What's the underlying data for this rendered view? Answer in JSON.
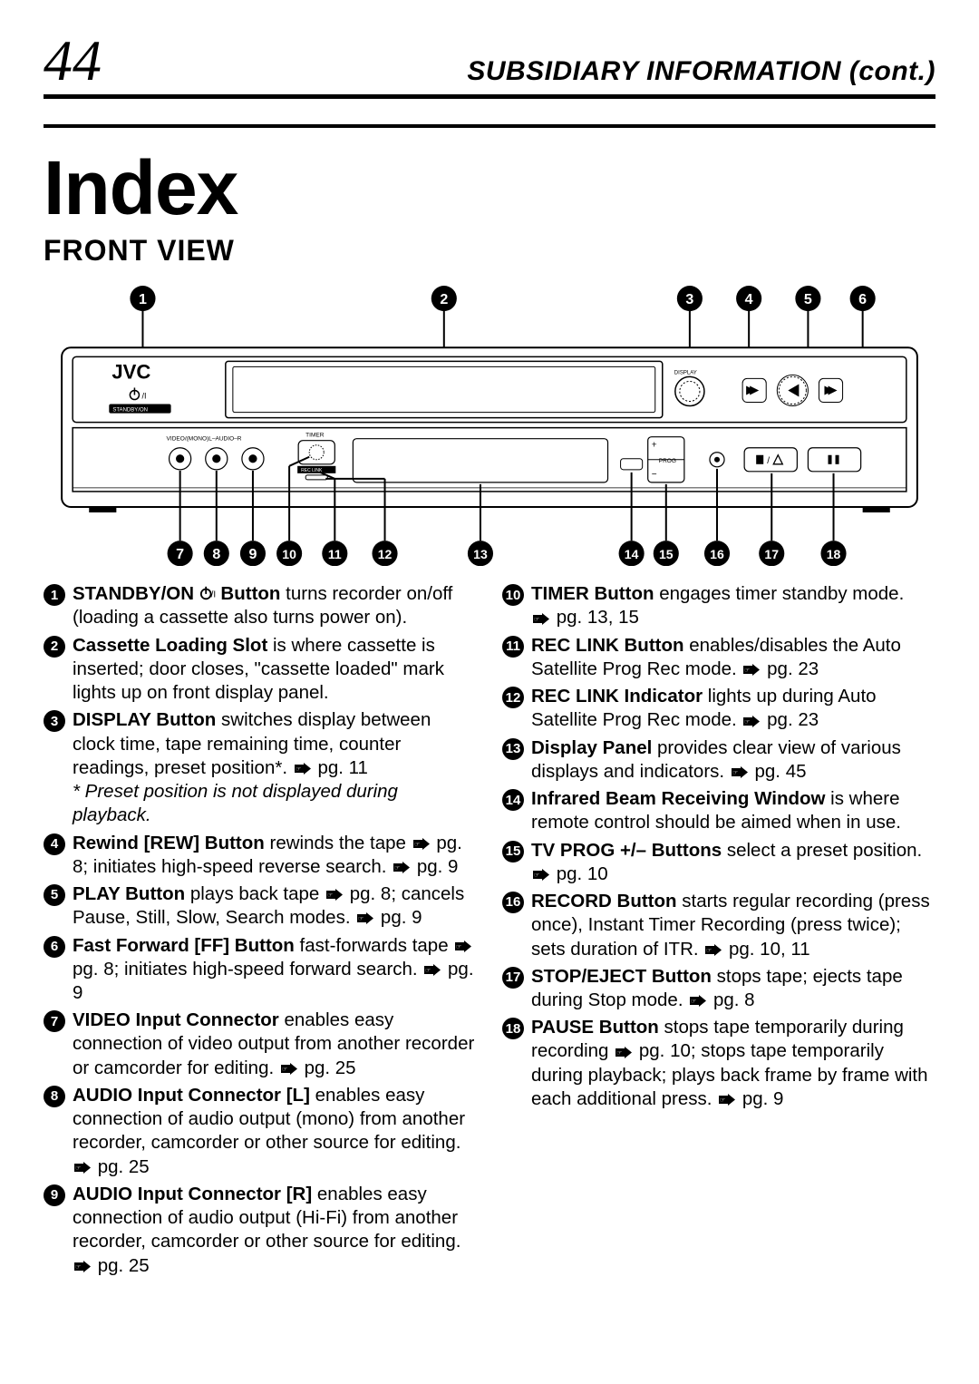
{
  "page_number": "44",
  "header": "SUBSIDIARY INFORMATION (cont.)",
  "title": "Index",
  "section": "FRONT VIEW",
  "diagram": {
    "brand": "JVC",
    "standby_label": "STANDBY/ON",
    "timer_label": "TIMER",
    "reclink_label": "REC LINK",
    "av_label": "VIDEO/(MONO)L–AUDIO–R",
    "display_label": "DISPLAY",
    "prog_label": "PROG",
    "top_callouts": [
      "1",
      "2",
      "3",
      "4",
      "5",
      "6"
    ],
    "bottom_callouts": [
      "7",
      "8",
      "9",
      "10",
      "11",
      "12",
      "13",
      "14",
      "15",
      "16",
      "17",
      "18"
    ]
  },
  "left_items": [
    {
      "n": "1",
      "title": "STANDBY/ON",
      "icon": true,
      "title2": " Button",
      "body": " turns recorder on/off (loading a cassette also turns power on)."
    },
    {
      "n": "2",
      "title": "Cassette Loading Slot",
      "body": " is where cassette is inserted; door closes, \"cassette loaded\" mark lights up on front display panel."
    },
    {
      "n": "3",
      "title": "DISPLAY Button",
      "body": " switches display between clock time, tape remaining time, counter readings, preset position*. ",
      "ref": "pg. 11",
      "footnote": "* Preset position is not displayed during playback."
    },
    {
      "n": "4",
      "title": "Rewind [REW] Button",
      "body": " rewinds the tape ",
      "ref": "pg. 8",
      "body2": "; initiates high-speed reverse search. ",
      "ref2": "pg. 9"
    },
    {
      "n": "5",
      "title": "PLAY Button",
      "body": " plays back tape ",
      "ref": "pg. 8",
      "body2": "; cancels Pause, Still, Slow, Search modes. ",
      "ref2": "pg. 9"
    },
    {
      "n": "6",
      "title": "Fast Forward [FF] Button",
      "body": " fast-forwards tape ",
      "ref": "pg. 8",
      "body2": "; initiates high-speed forward search. ",
      "ref2": "pg. 9"
    },
    {
      "n": "7",
      "title": "VIDEO Input Connector",
      "body": " enables easy connection of video output from another recorder or camcorder for editing. ",
      "ref": "pg. 25"
    },
    {
      "n": "8",
      "title": "AUDIO Input Connector [L]",
      "body": " enables easy connection of audio output (mono) from another recorder, camcorder or other source for editing. ",
      "ref": "pg. 25"
    },
    {
      "n": "9",
      "title": "AUDIO Input Connector [R]",
      "body": " enables easy connection of audio output (Hi-Fi) from another recorder, camcorder or other source for editing. ",
      "refline": "pg. 25"
    }
  ],
  "right_items": [
    {
      "n": "10",
      "title": "TIMER Button",
      "body": " engages timer standby mode. ",
      "refline": "pg. 13, 15"
    },
    {
      "n": "11",
      "title": "REC LINK Button",
      "body": " enables/disables the Auto Satellite Prog Rec mode. ",
      "ref": "pg. 23"
    },
    {
      "n": "12",
      "title": "REC LINK Indicator",
      "body": " lights up during Auto Satellite Prog Rec mode. ",
      "ref": "pg. 23"
    },
    {
      "n": "13",
      "title": "Display Panel",
      "body": " provides clear view of various displays and indicators. ",
      "ref": "pg. 45"
    },
    {
      "n": "14",
      "title": "Infrared Beam Receiving Window",
      "body": " is where remote control should be aimed when in use."
    },
    {
      "n": "15",
      "title": "TV PROG +/– Buttons",
      "body": " select a preset position. ",
      "refline": "pg. 10"
    },
    {
      "n": "16",
      "title": "RECORD Button",
      "body": " starts regular recording (press once), Instant Timer Recording (press twice); sets duration of ITR. ",
      "ref": "pg. 10, 11"
    },
    {
      "n": "17",
      "title": "STOP/EJECT Button",
      "body": " stops tape; ejects tape during Stop mode. ",
      "ref": "pg. 8"
    },
    {
      "n": "18",
      "title": "PAUSE Button",
      "body": " stops tape temporarily during recording ",
      "ref": "pg. 10",
      "body2": "; stops tape temporarily during playback; plays back frame by frame with each additional press. ",
      "ref2": "pg. 9"
    }
  ]
}
